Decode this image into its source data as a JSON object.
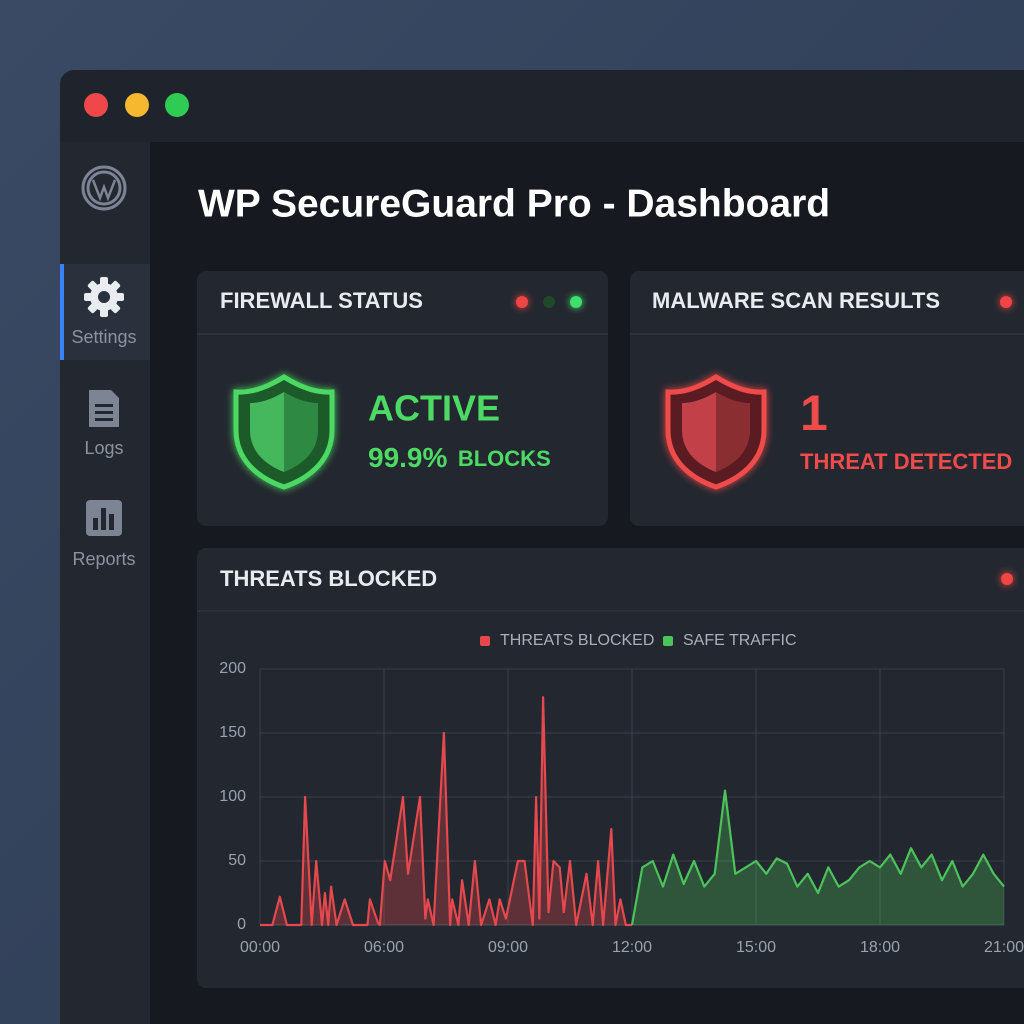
{
  "sidebar": {
    "active": 0,
    "items": [
      {
        "label": "Settings"
      },
      {
        "label": "Logs"
      },
      {
        "label": "Reports"
      }
    ]
  },
  "header": {
    "title": "WP SecureGuard Pro - Dashboard"
  },
  "cards": [
    {
      "title": "FIREWALL STATUS",
      "status": "ACTIVE",
      "value": "99.9%",
      "label": "BLOCKS"
    },
    {
      "title": "MALWARE SCAN RESULTS",
      "value": "1",
      "label": "THREAT DETECTED"
    }
  ],
  "chart_data": {
    "type": "line",
    "title": "THREATS BLOCKED",
    "series": [
      {
        "name": "THREATS BLOCKED",
        "color": "#e5484d",
        "x": [
          0,
          0.6,
          0.96,
          1.3,
          2.0,
          2.18,
          2.5,
          2.72,
          3.0,
          3.14,
          3.3,
          3.44,
          3.7,
          4.1,
          4.5,
          5.2,
          5.32,
          5.7,
          5.8,
          6.02,
          6.15,
          6.46,
          6.58,
          6.87,
          7.0,
          7.06,
          7.2,
          7.45,
          7.6,
          7.65,
          7.8,
          7.89,
          8.05,
          8.2,
          8.35,
          8.55,
          8.7,
          8.8,
          8.95,
          9.24,
          9.4,
          9.6,
          9.68,
          9.76,
          9.85,
          9.98,
          10.1,
          10.25,
          10.35,
          10.5,
          10.65,
          10.9,
          11.05,
          11.18,
          11.3,
          11.5,
          11.6,
          11.72,
          11.85,
          12
        ],
        "values": [
          0,
          0,
          22,
          0,
          0,
          100,
          0,
          50,
          0,
          25,
          0,
          30,
          0,
          20,
          0,
          0,
          20,
          2,
          0,
          50,
          35,
          100,
          40,
          100,
          5,
          20,
          0,
          150,
          0,
          20,
          0,
          35,
          0,
          50,
          0,
          20,
          0,
          20,
          5,
          50,
          50,
          0,
          100,
          5,
          178,
          10,
          50,
          45,
          10,
          50,
          0,
          40,
          0,
          50,
          0,
          75,
          0,
          20,
          0,
          0
        ]
      },
      {
        "name": "SAFE TRAFFIC",
        "color": "#4cc35a",
        "x": [
          12,
          12.25,
          12.5,
          12.75,
          13,
          13.25,
          13.5,
          13.75,
          14,
          14.25,
          14.5,
          14.75,
          15,
          15.25,
          15.5,
          15.75,
          16,
          16.25,
          16.5,
          16.75,
          17,
          17.25,
          17.5,
          17.75,
          18,
          18.25,
          18.5,
          18.75,
          19,
          19.25,
          19.5,
          19.75,
          20,
          20.25,
          20.5,
          20.75,
          21
        ],
        "values": [
          0,
          45,
          50,
          30,
          55,
          32,
          50,
          30,
          40,
          105,
          40,
          45,
          50,
          40,
          52,
          48,
          30,
          40,
          25,
          45,
          30,
          35,
          45,
          50,
          45,
          55,
          40,
          60,
          45,
          55,
          35,
          50,
          30,
          40,
          55,
          40,
          30
        ]
      }
    ],
    "xlim": [
      0,
      21
    ],
    "xticks": [
      {
        "value": 0,
        "label": "00:00"
      },
      {
        "value": 6,
        "label": "06:00"
      },
      {
        "value": 9,
        "label": "09:00"
      },
      {
        "value": 12,
        "label": "12:00"
      },
      {
        "value": 15,
        "label": "15:00"
      },
      {
        "value": 18,
        "label": "18:00"
      },
      {
        "value": 21,
        "label": "21:00"
      }
    ],
    "ylim": [
      0,
      200
    ],
    "yticks": [
      0,
      50,
      100,
      150,
      200
    ],
    "grid": true
  }
}
